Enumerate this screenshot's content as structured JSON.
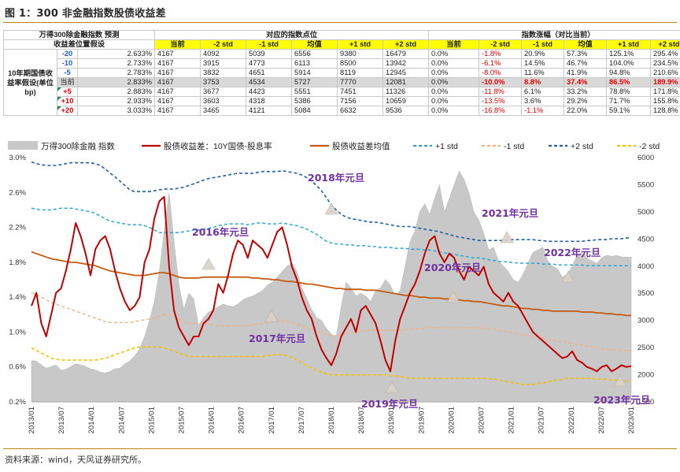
{
  "title": "图 1：300 非金融指数股债收益差",
  "source": "资料来源：wind，天风证券研究所。",
  "table": {
    "hdr_left_1": "万得300除金融指数 预测",
    "hdr_left_2": "收益差位置假设",
    "hdr_mid": "对应的指数点位",
    "hdr_right": "指数涨幅（对比当前）",
    "col_labels": [
      "当前",
      "-2 std",
      "-1 std",
      "均值",
      "+1 std",
      "+2 std"
    ],
    "row_group_label": "10年期国债收益率假设(单位bp)",
    "rows": [
      {
        "bp": "-20",
        "rate": "2.633%",
        "pts": [
          "4167",
          "4092",
          "5039",
          "6556",
          "9380",
          "16479"
        ],
        "chg": [
          "0.0%",
          "-1.8%",
          "20.9%",
          "57.3%",
          "125.1%",
          "295.4%"
        ]
      },
      {
        "bp": "-10",
        "rate": "2.733%",
        "pts": [
          "4167",
          "3915",
          "4773",
          "6113",
          "8500",
          "13942"
        ],
        "chg": [
          "0.0%",
          "-6.1%",
          "14.5%",
          "46.7%",
          "104.0%",
          "234.5%"
        ]
      },
      {
        "bp": "-5",
        "rate": "2.783%",
        "pts": [
          "4167",
          "3832",
          "4651",
          "5914",
          "8119",
          "12945"
        ],
        "chg": [
          "0.0%",
          "-8.0%",
          "11.6%",
          "41.9%",
          "94.8%",
          "210.6%"
        ]
      },
      {
        "bp": "当前",
        "rate": "2.833%",
        "pts": [
          "4167",
          "3753",
          "4534",
          "5727",
          "7770",
          "12081"
        ],
        "chg": [
          "0.0%",
          "-10.0%",
          "8.8%",
          "37.4%",
          "86.5%",
          "189.9%"
        ]
      },
      {
        "bp": "+5",
        "rate": "2.883%",
        "pts": [
          "4167",
          "3677",
          "4423",
          "5551",
          "7451",
          "11326"
        ],
        "chg": [
          "0.0%",
          "-11.8%",
          "6.1%",
          "33.2%",
          "78.8%",
          "171.8%"
        ]
      },
      {
        "bp": "+10",
        "rate": "2.933%",
        "pts": [
          "4167",
          "3603",
          "4318",
          "5386",
          "7156",
          "10659"
        ],
        "chg": [
          "0.0%",
          "-13.5%",
          "3.6%",
          "29.2%",
          "71.7%",
          "155.8%"
        ]
      },
      {
        "bp": "+20",
        "rate": "3.033%",
        "pts": [
          "4167",
          "3465",
          "4121",
          "5084",
          "6632",
          "9536"
        ],
        "chg": [
          "0.0%",
          "-16.8%",
          "-1.1%",
          "22.0%",
          "59.1%",
          "128.8%"
        ]
      }
    ]
  },
  "colors": {
    "index_area": "#c8c8c8",
    "spread": "#c00000",
    "mean": "#c55a11",
    "plus1": "#2aa7d8",
    "minus1": "#f4b183",
    "plus2": "#1f5fa8",
    "minus2": "#f5c000",
    "annotation": "#7030a0",
    "table_highlight": "#ffff00"
  },
  "chart_data": {
    "type": "line",
    "legend": [
      "万得300除金融 指数",
      "股债收益差：10Y国债-股息率",
      "股债收益差均值",
      "+1 std",
      "-1 std",
      "+2 std",
      "-2 std"
    ],
    "x_ticks": [
      "2013/01",
      "2013/07",
      "2014/01",
      "2014/07",
      "2015/01",
      "2015/07",
      "2016/01",
      "2016/07",
      "2017/01",
      "2017/07",
      "2018/01",
      "2018/07",
      "2019/01",
      "2019/07",
      "2020/01",
      "2020/07",
      "2021/01",
      "2021/07",
      "2022/01",
      "2022/07",
      "2023/01"
    ],
    "y_left_ticks": [
      "3.0%",
      "2.6%",
      "2.2%",
      "1.8%",
      "1.4%",
      "1.0%",
      "0.6%",
      "0.2%"
    ],
    "y_left_range": [
      0.2,
      3.0
    ],
    "y_right_ticks": [
      "6000",
      "5500",
      "5000",
      "4500",
      "4000",
      "3500",
      "3000",
      "2500",
      "2000",
      "1500"
    ],
    "y_right_range": [
      1500,
      6000
    ],
    "x_months": [
      0,
      1,
      2,
      3,
      4,
      5,
      6,
      7,
      8,
      9,
      10,
      11,
      12,
      13,
      14,
      15,
      16,
      17,
      18,
      19,
      20,
      21,
      22,
      23,
      24,
      25,
      26,
      27,
      28,
      29,
      30,
      31,
      32,
      33,
      34,
      35,
      36,
      37,
      38,
      39,
      40,
      41,
      42,
      43,
      44,
      45,
      46,
      47,
      48,
      49,
      50,
      51,
      52,
      53,
      54,
      55,
      56,
      57,
      58,
      59,
      60,
      61,
      62,
      63,
      64,
      65,
      66,
      67,
      68,
      69,
      70,
      71,
      72,
      73,
      74,
      75,
      76,
      77,
      78,
      79,
      80,
      81,
      82,
      83,
      84,
      85,
      86,
      87,
      88,
      89,
      90,
      91,
      92,
      93,
      94,
      95,
      96,
      97,
      98,
      99,
      100,
      101,
      102,
      103,
      104,
      105,
      106,
      107,
      108,
      109,
      110,
      111,
      112,
      113,
      114,
      115,
      116,
      117,
      118,
      119,
      120,
      121,
      122
    ],
    "series": [
      {
        "name": "万得300除金融 指数",
        "values": [
          2260,
          2250,
          2180,
          2120,
          2150,
          2180,
          2080,
          2100,
          2150,
          2200,
          2180,
          2150,
          2110,
          2090,
          2050,
          2030,
          2060,
          2110,
          2120,
          2200,
          2250,
          2350,
          2480,
          2700,
          3000,
          3350,
          3900,
          4650,
          5350,
          4450,
          3650,
          3200,
          3500,
          3400,
          2900,
          3050,
          3150,
          3200,
          3250,
          3300,
          3270,
          3250,
          3300,
          3380,
          3420,
          3450,
          3500,
          3550,
          3650,
          3700,
          3800,
          3900,
          4000,
          4050,
          3900,
          3600,
          3400,
          3200,
          3050,
          3000,
          2850,
          2750,
          2700,
          3250,
          3700,
          3600,
          3450,
          3500,
          3450,
          3350,
          3550,
          3600,
          3750,
          3650,
          3450,
          3550,
          4000,
          4450,
          4650,
          5000,
          5150,
          4950,
          5250,
          5500,
          5000,
          5250,
          5500,
          5750,
          5600,
          5350,
          5000,
          4850,
          4600,
          4300,
          4350,
          4100,
          4000,
          3900,
          3750,
          3700,
          3850,
          4050,
          4250,
          4300,
          4350,
          4100,
          4000,
          3950,
          3800,
          3850,
          4000,
          4200,
          4250,
          4150,
          4100,
          4050,
          4150,
          4200,
          4180,
          4200,
          4170,
          4167,
          4167
        ]
      },
      {
        "name": "股债收益差：10Y国债-股息率",
        "values": [
          1.3,
          1.45,
          1.1,
          0.95,
          1.2,
          1.45,
          1.5,
          1.7,
          1.95,
          2.25,
          2.1,
          1.9,
          1.65,
          1.95,
          2.05,
          2.1,
          1.95,
          1.7,
          1.5,
          1.35,
          1.25,
          1.3,
          1.4,
          1.8,
          1.95,
          2.3,
          2.5,
          2.55,
          1.75,
          1.25,
          1.05,
          0.95,
          0.85,
          0.95,
          0.95,
          1.1,
          1.15,
          1.25,
          1.55,
          1.45,
          1.65,
          1.9,
          2.05,
          2.0,
          1.85,
          2.05,
          2.0,
          1.95,
          1.85,
          2.0,
          2.15,
          2.2,
          2.0,
          1.75,
          1.6,
          1.4,
          1.25,
          1.15,
          0.95,
          0.8,
          0.7,
          0.62,
          0.75,
          0.95,
          1.05,
          1.15,
          1.0,
          1.25,
          1.3,
          1.2,
          1.1,
          0.9,
          0.68,
          0.55,
          0.9,
          1.15,
          1.3,
          1.45,
          1.55,
          1.7,
          1.9,
          2.05,
          2.1,
          1.9,
          1.8,
          1.9,
          1.85,
          1.7,
          1.6,
          1.75,
          1.7,
          1.65,
          1.75,
          1.55,
          1.45,
          1.4,
          1.35,
          1.45,
          1.35,
          1.3,
          1.2,
          1.1,
          1.0,
          0.95,
          0.9,
          0.85,
          0.8,
          0.75,
          0.7,
          0.72,
          0.78,
          0.68,
          0.65,
          0.6,
          0.58,
          0.55,
          0.6,
          0.62,
          0.55,
          0.58,
          0.62,
          0.6,
          0.61
        ]
      },
      {
        "name": "股债收益差均值",
        "values": [
          1.92,
          1.9,
          1.88,
          1.86,
          1.84,
          1.83,
          1.82,
          1.81,
          1.8,
          1.8,
          1.79,
          1.78,
          1.77,
          1.76,
          1.74,
          1.72,
          1.7,
          1.69,
          1.68,
          1.67,
          1.66,
          1.65,
          1.65,
          1.65,
          1.66,
          1.67,
          1.68,
          1.68,
          1.67,
          1.65,
          1.63,
          1.62,
          1.62,
          1.62,
          1.62,
          1.63,
          1.63,
          1.63,
          1.63,
          1.63,
          1.63,
          1.63,
          1.63,
          1.63,
          1.63,
          1.62,
          1.62,
          1.61,
          1.61,
          1.6,
          1.6,
          1.59,
          1.58,
          1.58,
          1.57,
          1.56,
          1.55,
          1.55,
          1.54,
          1.53,
          1.52,
          1.51,
          1.5,
          1.5,
          1.49,
          1.49,
          1.49,
          1.49,
          1.48,
          1.48,
          1.48,
          1.47,
          1.46,
          1.45,
          1.44,
          1.43,
          1.42,
          1.42,
          1.41,
          1.4,
          1.4,
          1.39,
          1.39,
          1.39,
          1.38,
          1.38,
          1.37,
          1.37,
          1.36,
          1.36,
          1.35,
          1.35,
          1.34,
          1.33,
          1.32,
          1.31,
          1.3,
          1.3,
          1.29,
          1.28,
          1.27,
          1.27,
          1.26,
          1.26,
          1.25,
          1.25,
          1.24,
          1.24,
          1.24,
          1.24,
          1.24,
          1.24,
          1.23,
          1.23,
          1.23,
          1.22,
          1.22,
          1.21,
          1.21,
          1.2,
          1.2,
          1.19,
          1.19
        ]
      },
      {
        "name": "+1 std",
        "values": [
          2.42,
          2.41,
          2.4,
          2.4,
          2.4,
          2.41,
          2.42,
          2.42,
          2.42,
          2.41,
          2.4,
          2.39,
          2.38,
          2.36,
          2.33,
          2.3,
          2.27,
          2.26,
          2.25,
          2.24,
          2.23,
          2.23,
          2.23,
          2.22,
          2.2,
          2.17,
          2.14,
          2.14,
          2.14,
          2.14,
          2.14,
          2.15,
          2.16,
          2.17,
          2.17,
          2.18,
          2.19,
          2.2,
          2.22,
          2.23,
          2.24,
          2.24,
          2.24,
          2.24,
          2.23,
          2.24,
          2.25,
          2.25,
          2.24,
          2.24,
          2.24,
          2.25,
          2.24,
          2.23,
          2.22,
          2.2,
          2.18,
          2.15,
          2.12,
          2.08,
          2.04,
          2.02,
          2.01,
          2.01,
          2.0,
          2.0,
          1.99,
          1.99,
          1.99,
          1.98,
          1.98,
          1.97,
          1.97,
          1.97,
          1.96,
          1.96,
          1.96,
          1.95,
          1.95,
          1.95,
          1.94,
          1.94,
          1.93,
          1.92,
          1.91,
          1.9,
          1.89,
          1.88,
          1.87,
          1.86,
          1.85,
          1.85,
          1.84,
          1.83,
          1.82,
          1.81,
          1.81,
          1.8,
          1.8,
          1.79,
          1.79,
          1.79,
          1.79,
          1.79,
          1.78,
          1.78,
          1.78,
          1.77,
          1.77,
          1.77,
          1.77,
          1.77,
          1.77,
          1.76,
          1.76,
          1.76,
          1.76,
          1.76,
          1.76,
          1.76,
          1.76,
          1.76,
          1.76
        ]
      },
      {
        "name": "-1 std",
        "values": [
          1.45,
          1.43,
          1.4,
          1.37,
          1.34,
          1.32,
          1.3,
          1.28,
          1.26,
          1.24,
          1.22,
          1.2,
          1.18,
          1.16,
          1.14,
          1.12,
          1.11,
          1.11,
          1.11,
          1.11,
          1.11,
          1.12,
          1.13,
          1.14,
          1.15,
          1.16,
          1.18,
          1.2,
          1.2,
          1.18,
          1.15,
          1.12,
          1.1,
          1.1,
          1.1,
          1.1,
          1.09,
          1.08,
          1.07,
          1.07,
          1.07,
          1.07,
          1.07,
          1.07,
          1.07,
          1.08,
          1.09,
          1.1,
          1.11,
          1.12,
          1.13,
          1.13,
          1.12,
          1.11,
          1.09,
          1.07,
          1.05,
          1.03,
          1.01,
          0.99,
          0.97,
          0.96,
          0.96,
          0.97,
          0.98,
          0.99,
          1.0,
          1.01,
          1.02,
          1.02,
          1.02,
          1.02,
          1.02,
          1.02,
          1.02,
          1.02,
          1.03,
          1.03,
          1.04,
          1.04,
          1.05,
          1.05,
          1.05,
          1.05,
          1.05,
          1.05,
          1.05,
          1.05,
          1.05,
          1.05,
          1.05,
          1.05,
          1.04,
          1.04,
          1.03,
          1.02,
          1.01,
          1.0,
          0.99,
          0.98,
          0.97,
          0.96,
          0.95,
          0.94,
          0.93,
          0.92,
          0.91,
          0.9,
          0.89,
          0.88,
          0.87,
          0.86,
          0.85,
          0.84,
          0.83,
          0.82,
          0.81,
          0.8,
          0.8,
          0.79,
          0.79,
          0.79,
          0.79
        ]
      },
      {
        "name": "+2 std",
        "values": [
          2.95,
          2.93,
          2.92,
          2.91,
          2.91,
          2.91,
          2.92,
          2.93,
          2.94,
          2.94,
          2.94,
          2.94,
          2.94,
          2.93,
          2.91,
          2.87,
          2.82,
          2.78,
          2.73,
          2.68,
          2.63,
          2.61,
          2.61,
          2.61,
          2.61,
          2.62,
          2.63,
          2.64,
          2.64,
          2.64,
          2.65,
          2.66,
          2.68,
          2.7,
          2.72,
          2.74,
          2.76,
          2.77,
          2.78,
          2.79,
          2.8,
          2.81,
          2.82,
          2.82,
          2.82,
          2.82,
          2.83,
          2.84,
          2.84,
          2.84,
          2.84,
          2.85,
          2.84,
          2.83,
          2.82,
          2.8,
          2.77,
          2.73,
          2.68,
          2.62,
          2.54,
          2.46,
          2.4,
          2.35,
          2.32,
          2.3,
          2.29,
          2.28,
          2.27,
          2.26,
          2.26,
          2.25,
          2.24,
          2.23,
          2.22,
          2.21,
          2.21,
          2.21,
          2.2,
          2.19,
          2.18,
          2.17,
          2.16,
          2.15,
          2.13,
          2.12,
          2.1,
          2.09,
          2.08,
          2.07,
          2.06,
          2.05,
          2.05,
          2.05,
          2.05,
          2.05,
          2.05,
          2.06,
          2.06,
          2.06,
          2.06,
          2.06,
          2.06,
          2.05,
          2.05,
          2.04,
          2.04,
          2.04,
          2.04,
          2.04,
          2.04,
          2.04,
          2.04,
          2.05,
          2.05,
          2.06,
          2.06,
          2.06,
          2.07,
          2.07,
          2.07,
          2.08,
          2.08
        ]
      },
      {
        "name": "-2 std",
        "values": [
          0.82,
          0.79,
          0.76,
          0.73,
          0.7,
          0.69,
          0.68,
          0.68,
          0.68,
          0.68,
          0.68,
          0.68,
          0.68,
          0.68,
          0.69,
          0.7,
          0.72,
          0.74,
          0.76,
          0.78,
          0.8,
          0.82,
          0.83,
          0.83,
          0.83,
          0.83,
          0.83,
          0.82,
          0.8,
          0.78,
          0.76,
          0.74,
          0.72,
          0.72,
          0.72,
          0.72,
          0.72,
          0.72,
          0.72,
          0.72,
          0.72,
          0.72,
          0.72,
          0.72,
          0.72,
          0.72,
          0.72,
          0.72,
          0.73,
          0.74,
          0.74,
          0.74,
          0.73,
          0.71,
          0.68,
          0.65,
          0.62,
          0.59,
          0.56,
          0.54,
          0.52,
          0.51,
          0.51,
          0.51,
          0.51,
          0.51,
          0.51,
          0.51,
          0.51,
          0.51,
          0.51,
          0.51,
          0.51,
          0.5,
          0.5,
          0.49,
          0.48,
          0.47,
          0.47,
          0.47,
          0.47,
          0.47,
          0.47,
          0.47,
          0.47,
          0.47,
          0.47,
          0.47,
          0.47,
          0.47,
          0.47,
          0.47,
          0.47,
          0.46,
          0.46,
          0.45,
          0.44,
          0.43,
          0.42,
          0.41,
          0.4,
          0.4,
          0.4,
          0.41,
          0.42,
          0.43,
          0.44,
          0.45,
          0.46,
          0.47,
          0.47,
          0.47,
          0.47,
          0.47,
          0.47,
          0.46,
          0.46,
          0.46,
          0.45,
          0.45,
          0.45,
          0.44,
          0.44
        ]
      }
    ],
    "annotations": [
      "2016年元旦",
      "2017年元旦",
      "2018年元旦",
      "2019年元旦",
      "2020年元旦",
      "2021年元旦",
      "2022年元旦",
      "2023年元旦"
    ]
  }
}
